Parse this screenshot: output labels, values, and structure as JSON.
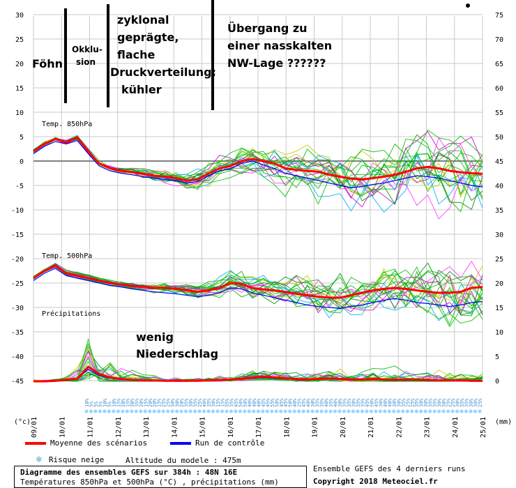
{
  "chart_data": {
    "type": "line",
    "panels": [
      {
        "title": "Temp. 850hPa",
        "unit": "°C",
        "mean": [
          2,
          3.5,
          4.5,
          3.8,
          4.8,
          2,
          -0.5,
          -1.5,
          -2,
          -2.3,
          -2.6,
          -3,
          -3.2,
          -3.5,
          -4,
          -3.8,
          -2.5,
          -1.5,
          -1,
          0,
          0.4,
          0,
          -0.5,
          -1.5,
          -1.8,
          -2,
          -2.2,
          -2.8,
          -3.2,
          -3.6,
          -3.8,
          -3.5,
          -3.2,
          -2.8,
          -2.2,
          -1.5,
          -1.2,
          -1.5,
          -2,
          -2.3,
          -2.5,
          -2.6
        ],
        "control": [
          1.5,
          3,
          4,
          3.5,
          4.2,
          1.5,
          -1,
          -2,
          -2.5,
          -2.8,
          -3.2,
          -3.5,
          -3.8,
          -4,
          -4.5,
          -4.2,
          -3,
          -2,
          -1.5,
          -0.5,
          0,
          -0.8,
          -1.5,
          -2.5,
          -3,
          -3.5,
          -4,
          -4.5,
          -5,
          -5.5,
          -5.2,
          -4.8,
          -4.5,
          -4,
          -3.5,
          -3,
          -3.2,
          -3.5,
          -4,
          -4.5,
          -5,
          -5.3
        ]
      },
      {
        "title": "Temp. 500hPa",
        "unit": "°C",
        "mean": [
          -24,
          -22.5,
          -21.5,
          -23,
          -23.5,
          -24,
          -24.5,
          -25,
          -25.3,
          -25.6,
          -25.8,
          -26,
          -26,
          -26.2,
          -26.5,
          -26.8,
          -26.5,
          -26,
          -25,
          -25.2,
          -26,
          -26.3,
          -26.5,
          -26.8,
          -27.2,
          -27.5,
          -27.8,
          -28,
          -28,
          -27.5,
          -27,
          -26.5,
          -26.2,
          -26,
          -26.2,
          -26.5,
          -26.8,
          -27,
          -27,
          -26.8,
          -26,
          -25.8
        ],
        "control": [
          -24.5,
          -23,
          -22,
          -23.5,
          -24,
          -24.5,
          -25,
          -25.5,
          -25.8,
          -26.2,
          -26.5,
          -26.8,
          -27,
          -27.2,
          -27.5,
          -27.8,
          -27.5,
          -27,
          -26,
          -26.2,
          -27,
          -27.5,
          -28,
          -28.5,
          -29,
          -29.5,
          -29.8,
          -30,
          -30.2,
          -29.8,
          -29.5,
          -29,
          -28.5,
          -28.2,
          -28.5,
          -29,
          -29.2,
          -29.5,
          -29.8,
          -29.5,
          -29,
          -28.8
        ]
      },
      {
        "title": "Précipitations",
        "unit": "mm",
        "mean": [
          0,
          0,
          0.1,
          0.3,
          0.5,
          3,
          1.5,
          0.8,
          0.5,
          0.3,
          0.2,
          0.2,
          0.1,
          0.1,
          0.1,
          0.1,
          0.2,
          0.3,
          0.4,
          0.5,
          0.8,
          1,
          0.8,
          0.6,
          0.5,
          0.4,
          0.5,
          0.6,
          0.5,
          0.4,
          0.4,
          0.5,
          0.4,
          0.3,
          0.4,
          0.3,
          0.3,
          0.2,
          0.2,
          0.2,
          0.1,
          0.1
        ],
        "control": [
          0,
          0,
          0,
          0.2,
          0.4,
          2.5,
          1.2,
          0.6,
          0.4,
          0.2,
          0.1,
          0.1,
          0.1,
          0,
          0,
          0.1,
          0.1,
          0.2,
          0.3,
          0.4,
          0.6,
          0.8,
          0.6,
          0.5,
          0.4,
          0.3,
          0.4,
          0.5,
          0.4,
          0.3,
          0.3,
          0.4,
          0.3,
          0.2,
          0.3,
          0.2,
          0.2,
          0.1,
          0.1,
          0.1,
          0,
          0
        ]
      }
    ],
    "x_labels": [
      "09/01",
      "10/01",
      "11/01",
      "12/01",
      "13/01",
      "14/01",
      "15/01",
      "16/01",
      "17/01",
      "18/01",
      "19/01",
      "20/01",
      "21/01",
      "22/01",
      "23/01",
      "24/01",
      "25/01"
    ],
    "x_unit": "(°c)",
    "x_unit_right": "(mm)",
    "y_left_ticks": [
      30,
      25,
      20,
      15,
      10,
      5,
      0,
      -5,
      -10,
      -15,
      -20,
      -25,
      -30,
      -35,
      -40,
      -45
    ],
    "y_right_ticks": [
      75,
      70,
      65,
      60,
      55,
      50,
      45,
      40,
      35,
      30,
      25,
      20,
      15,
      10,
      5,
      0
    ],
    "snow_risk_pct": [
      10,
      5,
      5,
      5,
      10,
      5,
      10,
      15,
      20,
      15,
      30,
      35,
      20,
      15,
      20,
      20,
      15,
      25,
      25,
      30,
      30,
      20,
      35,
      30,
      35,
      25,
      40,
      35,
      30,
      15,
      15,
      35,
      35,
      45,
      50,
      50,
      40,
      40,
      40,
      45,
      45,
      55,
      50,
      45,
      45,
      50,
      40,
      25,
      45,
      40,
      30,
      35,
      35,
      40,
      35,
      40,
      30,
      35,
      35,
      30,
      35,
      35,
      45,
      50,
      45,
      30,
      40,
      40,
      30,
      30,
      35,
      25,
      25,
      35,
      30,
      30,
      35,
      35,
      30,
      30,
      25,
      25,
      30,
      35,
      35,
      30,
      30,
      25
    ],
    "colors": {
      "mean": "#ff0000",
      "control": "#0000ff",
      "ensemble": [
        "#00bb00",
        "#00bb00",
        "#00bb00",
        "#cc00cc",
        "#00aaff",
        "#c8c800",
        "#00bb00",
        "#00bb00",
        "#ff33ff",
        "#008800"
      ],
      "snow": "#9cd6ff"
    }
  },
  "annotations": {
    "foehn": "Föhn",
    "okklusion_line1": "Okklu-",
    "okklusion_line2": "sion",
    "zyklonal": [
      "zyklonal",
      "geprägte,",
      "flache",
      "Druckverteilung;",
      "kühler"
    ],
    "uebergang": [
      "Übergang zu",
      "einer nasskalten",
      "NW-Lage ??????"
    ],
    "wenig": [
      "wenig",
      "Niederschlag"
    ]
  },
  "legend": {
    "mean_label": "Moyenne des scénarios",
    "control_label": "Run de contrôle",
    "snow_label": "Risque neige",
    "altitude": "Altitude du modele : 475m",
    "ensemble_info": "Ensemble GEFS des 4 derniers runs",
    "title": "Diagramme des ensembles GEFS sur 384h : 48N 16E",
    "subtitle": "Températures 850hPa et 500hPa (°C) , précipitations (mm)",
    "copyright": "Copyright 2018 Meteociel.fr"
  }
}
